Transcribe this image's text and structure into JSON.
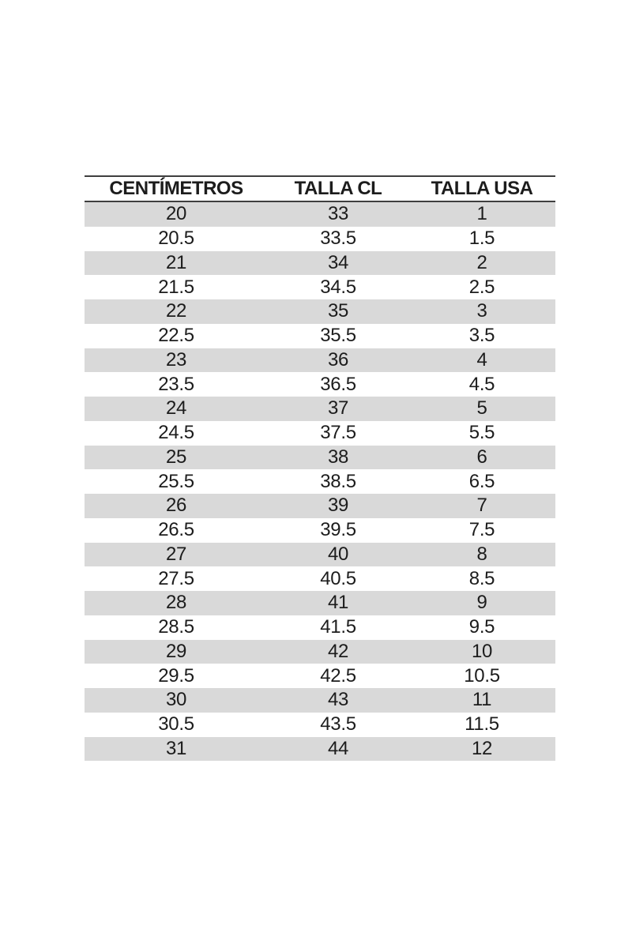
{
  "table": {
    "column_keys": [
      "centimetros",
      "talla_cl",
      "talla_usa"
    ],
    "columns": [
      "CENTÍMETROS",
      "TALLA CL",
      "TALLA USA"
    ],
    "rows": [
      [
        "20",
        "33",
        "1"
      ],
      [
        "20.5",
        "33.5",
        "1.5"
      ],
      [
        "21",
        "34",
        "2"
      ],
      [
        "21.5",
        "34.5",
        "2.5"
      ],
      [
        "22",
        "35",
        "3"
      ],
      [
        "22.5",
        "35.5",
        "3.5"
      ],
      [
        "23",
        "36",
        "4"
      ],
      [
        "23.5",
        "36.5",
        "4.5"
      ],
      [
        "24",
        "37",
        "5"
      ],
      [
        "24.5",
        "37.5",
        "5.5"
      ],
      [
        "25",
        "38",
        "6"
      ],
      [
        "25.5",
        "38.5",
        "6.5"
      ],
      [
        "26",
        "39",
        "7"
      ],
      [
        "26.5",
        "39.5",
        "7.5"
      ],
      [
        "27",
        "40",
        "8"
      ],
      [
        "27.5",
        "40.5",
        "8.5"
      ],
      [
        "28",
        "41",
        "9"
      ],
      [
        "28.5",
        "41.5",
        "9.5"
      ],
      [
        "29",
        "42",
        "10"
      ],
      [
        "29.5",
        "42.5",
        "10.5"
      ],
      [
        "30",
        "43",
        "11"
      ],
      [
        "30.5",
        "43.5",
        "11.5"
      ],
      [
        "31",
        "44",
        "12"
      ]
    ]
  },
  "colors": {
    "row_shade": "#d9d9d9",
    "rule": "#3f3f3f",
    "text": "#1c1c1c",
    "page_background": "#ffffff"
  }
}
